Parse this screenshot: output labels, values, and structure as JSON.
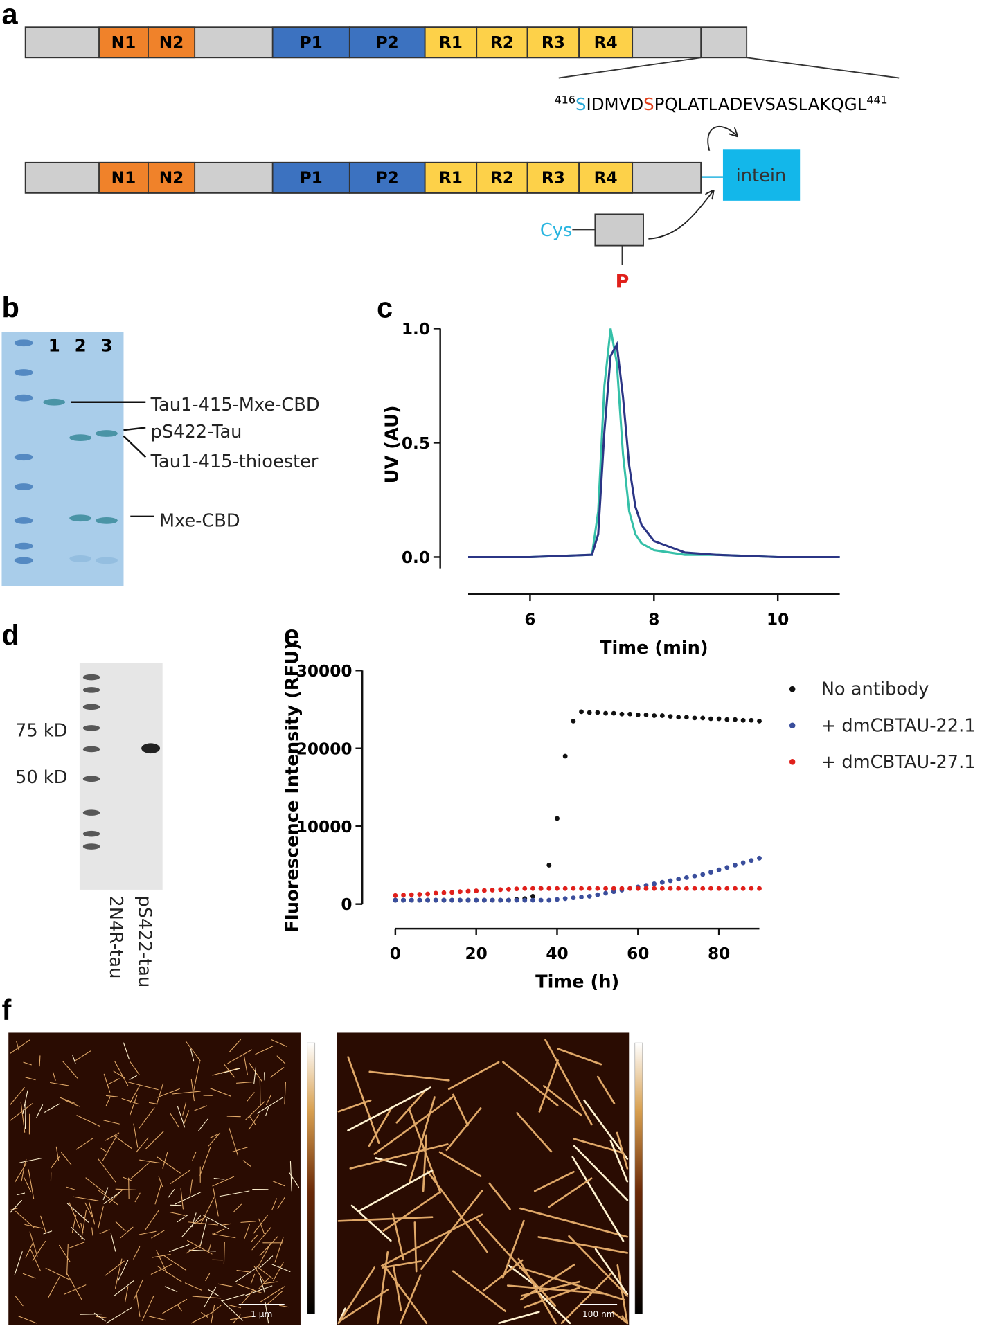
{
  "panels": {
    "a": {
      "label": "a",
      "domains_top": [
        "N1",
        "N2",
        "P1",
        "P2",
        "R1",
        "R2",
        "R3",
        "R4"
      ],
      "domains_bottom": [
        "N1",
        "N2",
        "P1",
        "P2",
        "R1",
        "R2",
        "R3",
        "R4"
      ],
      "sequence": {
        "start": "416",
        "first": "S",
        "mid": "IDMVD",
        "site": "S",
        "rest": "PQLATLADEVSASLAKQGL",
        "end": "441"
      },
      "intein": "intein",
      "cys": "Cys",
      "phospho": "P"
    },
    "b": {
      "label": "b",
      "lanes": [
        "1",
        "2",
        "3"
      ],
      "bands": [
        "Tau1-415-Mxe-CBD",
        "pS422-Tau",
        "Tau1-415-thioester",
        "Mxe-CBD"
      ]
    },
    "c": {
      "label": "c"
    },
    "d": {
      "label": "d",
      "markers": [
        "75 kD",
        "50 kD"
      ],
      "lanes": [
        "2N4R-tau",
        "pS422-tau"
      ]
    },
    "e": {
      "label": "e"
    },
    "f": {
      "label": "f",
      "scale_bars": [
        "1 µm",
        "100 nm"
      ]
    }
  },
  "chart_data": [
    {
      "type": "line",
      "ylabel": "UV (AU)",
      "xlabel": "Time (min)",
      "x": [
        5,
        6,
        7,
        7.1,
        7.2,
        7.3,
        7.4,
        7.5,
        7.6,
        7.7,
        7.8,
        8,
        8.5,
        9,
        10,
        11
      ],
      "xlim": [
        5,
        11
      ],
      "xticks": [
        6,
        8,
        10
      ],
      "ylim": [
        0,
        1
      ],
      "yticks": [
        {
          "value": 0,
          "label": "0.0"
        },
        {
          "value": 0.5,
          "label": "0.5"
        },
        {
          "value": 1,
          "label": "1.0"
        }
      ],
      "series": [
        {
          "color": "#35c0a8",
          "values": [
            0,
            0,
            0.01,
            0.2,
            0.75,
            1.0,
            0.85,
            0.45,
            0.2,
            0.1,
            0.06,
            0.03,
            0.01,
            0.01,
            0,
            0
          ]
        },
        {
          "color": "#2b3585",
          "values": [
            0,
            0,
            0.01,
            0.1,
            0.55,
            0.88,
            0.93,
            0.7,
            0.4,
            0.22,
            0.14,
            0.07,
            0.02,
            0.01,
            0,
            0
          ]
        }
      ]
    },
    {
      "type": "scatter",
      "ylabel": "Fluorescence Intensity (RFU)",
      "xlabel": "Time (h)",
      "legend": "outside-right",
      "x": [
        0,
        2,
        4,
        6,
        8,
        10,
        12,
        14,
        16,
        18,
        20,
        22,
        24,
        26,
        28,
        30,
        32,
        34,
        36,
        38,
        40,
        42,
        44,
        46,
        48,
        50,
        52,
        54,
        56,
        58,
        60,
        62,
        64,
        66,
        68,
        70,
        72,
        74,
        76,
        78,
        80,
        82,
        84,
        86,
        88,
        90
      ],
      "xlim": [
        0,
        90
      ],
      "xticks": [
        0,
        20,
        40,
        60,
        80
      ],
      "ylim": [
        0,
        30000
      ],
      "yticks": [
        0,
        10000,
        20000,
        30000
      ],
      "series": [
        {
          "name": "No antibody",
          "color": "#111111",
          "values": [
            500,
            500,
            500,
            500,
            500,
            500,
            500,
            500,
            500,
            500,
            500,
            500,
            500,
            500,
            500,
            600,
            700,
            1000,
            2000,
            5000,
            11000,
            19000,
            23500,
            24700,
            24600,
            24600,
            24500,
            24500,
            24400,
            24400,
            24300,
            24300,
            24200,
            24200,
            24100,
            24000,
            24000,
            23900,
            23900,
            23800,
            23800,
            23700,
            23700,
            23600,
            23600,
            23500
          ]
        },
        {
          "name": "+ dmCBTAU-22.1",
          "color": "#3a4e9c",
          "values": [
            500,
            500,
            500,
            500,
            500,
            500,
            500,
            500,
            500,
            500,
            500,
            500,
            500,
            500,
            500,
            500,
            500,
            500,
            500,
            500,
            600,
            700,
            800,
            900,
            1000,
            1200,
            1400,
            1600,
            1800,
            2000,
            2200,
            2400,
            2600,
            2800,
            3000,
            3200,
            3400,
            3600,
            3800,
            4100,
            4400,
            4700,
            5000,
            5300,
            5600,
            5900
          ]
        },
        {
          "name": "+ dmCBTAU-27.1",
          "color": "#e0201b",
          "values": [
            1100,
            1150,
            1200,
            1250,
            1300,
            1400,
            1450,
            1500,
            1600,
            1650,
            1700,
            1750,
            1800,
            1850,
            1900,
            1950,
            2000,
            2000,
            2000,
            2000,
            2000,
            2000,
            2000,
            2000,
            2000,
            2000,
            2000,
            2000,
            2000,
            2000,
            2000,
            2000,
            2000,
            2000,
            2000,
            2000,
            2000,
            2000,
            2000,
            2000,
            2000,
            2000,
            2000,
            2000,
            2000,
            2000
          ]
        }
      ]
    }
  ]
}
